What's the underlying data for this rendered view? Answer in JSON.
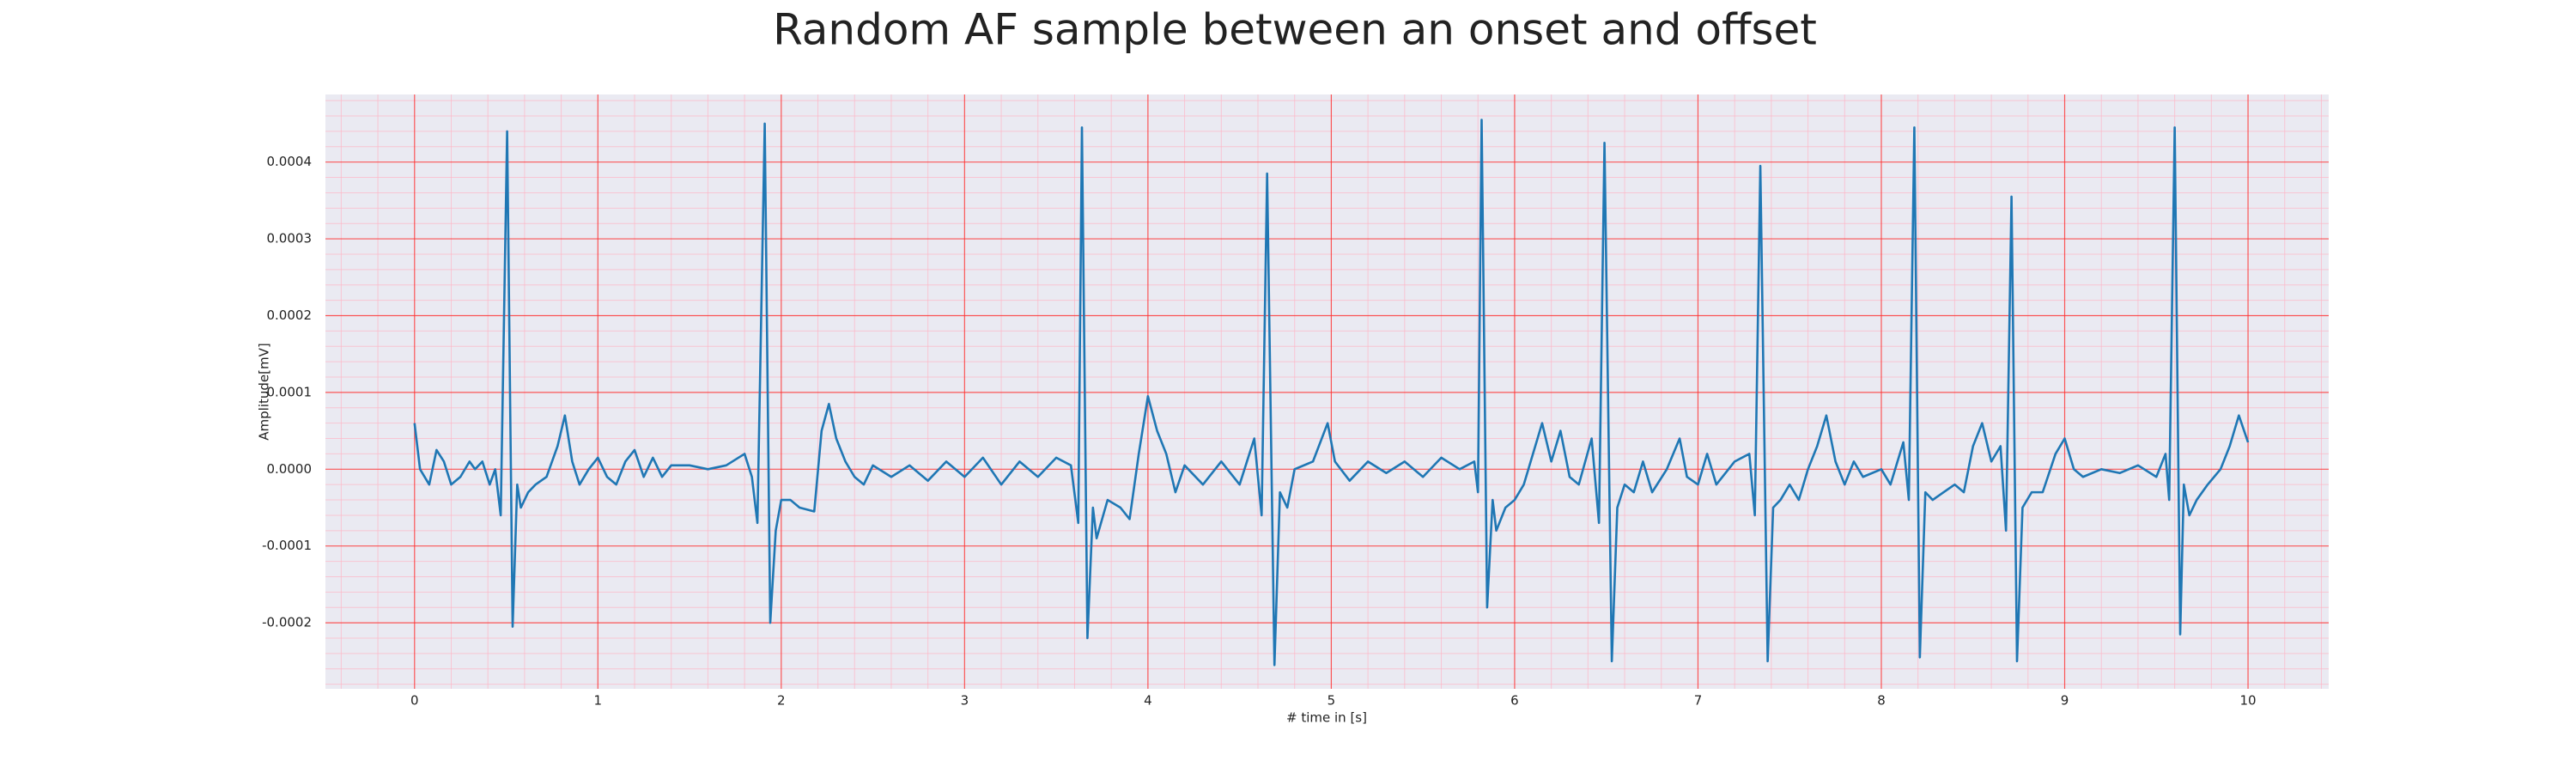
{
  "chart_data": {
    "type": "line",
    "title": "Random AF sample between an onset and offset",
    "xlabel": "# time in [s]",
    "ylabel": "Amplitude[mV]",
    "color": "#1f77b4",
    "grid": true,
    "minor_grid": true,
    "xlim": [
      -0.486,
      10.44
    ],
    "ylim": [
      -0.000286,
      0.000488
    ],
    "xticks": [
      0,
      1,
      2,
      3,
      4,
      5,
      6,
      7,
      8,
      9,
      10
    ],
    "yticks": [
      {
        "value": -0.0002,
        "label": "-0.0002"
      },
      {
        "value": -0.0001,
        "label": "-0.0001"
      },
      {
        "value": 0,
        "label": "0.0000"
      },
      {
        "value": 0.0001,
        "label": "0.0001"
      },
      {
        "value": 0.0002,
        "label": "0.0002"
      },
      {
        "value": 0.0003,
        "label": "0.0003"
      },
      {
        "value": 0.0004,
        "label": "0.0004"
      }
    ],
    "x": [
      0,
      0.03,
      0.08,
      0.12,
      0.16,
      0.2,
      0.25,
      0.3,
      0.33,
      0.37,
      0.41,
      0.44,
      0.47,
      0.505,
      0.535,
      0.56,
      0.58,
      0.62,
      0.66,
      0.72,
      0.78,
      0.82,
      0.86,
      0.9,
      0.95,
      1.0,
      1.05,
      1.1,
      1.15,
      1.2,
      1.25,
      1.3,
      1.35,
      1.4,
      1.5,
      1.6,
      1.7,
      1.8,
      1.84,
      1.87,
      1.91,
      1.94,
      1.97,
      2.0,
      2.05,
      2.1,
      2.18,
      2.22,
      2.26,
      2.3,
      2.35,
      2.4,
      2.45,
      2.5,
      2.6,
      2.7,
      2.8,
      2.9,
      3.0,
      3.1,
      3.2,
      3.3,
      3.4,
      3.5,
      3.58,
      3.62,
      3.64,
      3.67,
      3.7,
      3.72,
      3.78,
      3.85,
      3.9,
      3.95,
      4.0,
      4.05,
      4.1,
      4.15,
      4.2,
      4.3,
      4.4,
      4.5,
      4.58,
      4.62,
      4.65,
      4.69,
      4.72,
      4.76,
      4.8,
      4.9,
      4.98,
      5.02,
      5.1,
      5.2,
      5.3,
      5.4,
      5.5,
      5.6,
      5.7,
      5.78,
      5.8,
      5.82,
      5.85,
      5.88,
      5.9,
      5.95,
      6.0,
      6.05,
      6.1,
      6.15,
      6.2,
      6.25,
      6.3,
      6.35,
      6.42,
      6.46,
      6.49,
      6.53,
      6.56,
      6.6,
      6.65,
      6.7,
      6.75,
      6.83,
      6.9,
      6.94,
      7.0,
      7.05,
      7.1,
      7.2,
      7.28,
      7.31,
      7.34,
      7.38,
      7.41,
      7.45,
      7.5,
      7.55,
      7.6,
      7.65,
      7.7,
      7.75,
      7.8,
      7.85,
      7.9,
      8.0,
      8.05,
      8.12,
      8.15,
      8.18,
      8.21,
      8.24,
      8.28,
      8.34,
      8.4,
      8.45,
      8.5,
      8.55,
      8.6,
      8.65,
      8.68,
      8.71,
      8.74,
      8.77,
      8.82,
      8.88,
      8.95,
      9.0,
      9.05,
      9.1,
      9.2,
      9.3,
      9.4,
      9.5,
      9.55,
      9.57,
      9.6,
      9.63,
      9.65,
      9.68,
      9.72,
      9.78,
      9.85,
      9.9,
      9.95,
      10.0
    ],
    "values": [
      6e-05,
      0,
      -2e-05,
      2.5e-05,
      1e-05,
      -2e-05,
      -1e-05,
      1e-05,
      0,
      1e-05,
      -2e-05,
      0,
      -6e-05,
      0.00044,
      -0.000205,
      -2e-05,
      -5e-05,
      -3e-05,
      -2e-05,
      -1e-05,
      3e-05,
      7e-05,
      1e-05,
      -2e-05,
      0,
      1.5e-05,
      -1e-05,
      -2e-05,
      1e-05,
      2.5e-05,
      -1e-05,
      1.5e-05,
      -1e-05,
      5e-06,
      5e-06,
      0,
      5e-06,
      2e-05,
      -1e-05,
      -7e-05,
      0.00045,
      -0.0002,
      -8e-05,
      -4e-05,
      -4e-05,
      -5e-05,
      -5.5e-05,
      5e-05,
      8.5e-05,
      4e-05,
      1e-05,
      -1e-05,
      -2e-05,
      5e-06,
      -1e-05,
      5e-06,
      -1.5e-05,
      1e-05,
      -1e-05,
      1.5e-05,
      -2e-05,
      1e-05,
      -1e-05,
      1.5e-05,
      5e-06,
      -7e-05,
      0.000445,
      -0.00022,
      -5e-05,
      -9e-05,
      -4e-05,
      -5e-05,
      -6.5e-05,
      2e-05,
      9.5e-05,
      5e-05,
      2e-05,
      -3e-05,
      5e-06,
      -2e-05,
      1e-05,
      -2e-05,
      4e-05,
      -6e-05,
      0.000385,
      -0.000255,
      -3e-05,
      -5e-05,
      0,
      1e-05,
      6e-05,
      1e-05,
      -1.5e-05,
      1e-05,
      -5e-06,
      1e-05,
      -1e-05,
      1.5e-05,
      0,
      1e-05,
      -3e-05,
      0.000455,
      -0.00018,
      -4e-05,
      -8e-05,
      -5e-05,
      -4e-05,
      -2e-05,
      2e-05,
      6e-05,
      1e-05,
      5e-05,
      -1e-05,
      -2e-05,
      4e-05,
      -7e-05,
      0.000425,
      -0.00025,
      -5e-05,
      -2e-05,
      -3e-05,
      1e-05,
      -3e-05,
      0,
      4e-05,
      -1e-05,
      -2e-05,
      2e-05,
      -2e-05,
      1e-05,
      2e-05,
      -6e-05,
      0.000395,
      -0.00025,
      -5e-05,
      -4e-05,
      -2e-05,
      -4e-05,
      0,
      3e-05,
      7e-05,
      1e-05,
      -2e-05,
      1e-05,
      -1e-05,
      0,
      -2e-05,
      3.5e-05,
      -4e-05,
      0.000445,
      -0.000245,
      -3e-05,
      -4e-05,
      -3e-05,
      -2e-05,
      -3e-05,
      3e-05,
      6e-05,
      1e-05,
      3e-05,
      -8e-05,
      0.000355,
      -0.00025,
      -5e-05,
      -3e-05,
      -3e-05,
      2e-05,
      4e-05,
      0,
      -1e-05,
      0,
      -5e-06,
      5e-06,
      -1e-05,
      2e-05,
      -4e-05,
      0.000445,
      -0.000215,
      -2e-05,
      -6e-05,
      -4e-05,
      -2e-05,
      0,
      3e-05,
      7e-05,
      3.5e-05
    ]
  }
}
